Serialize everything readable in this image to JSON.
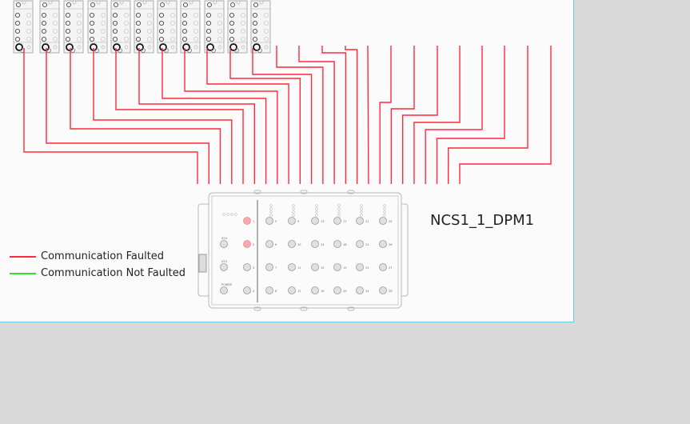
{
  "device": {
    "label": "NCS1_1_DPM1",
    "left_ports": [
      {
        "label": "1",
        "faulted": true
      },
      {
        "label": "2",
        "faulted": true
      },
      {
        "label": "3",
        "faulted": false
      },
      {
        "label": "4",
        "faulted": false
      }
    ],
    "left_aux_labels": [
      "",
      "X24",
      "X23",
      "POWER"
    ],
    "port_columns": [
      [
        "5",
        "6",
        "7",
        "8"
      ],
      [
        "9",
        "10",
        "11",
        "12"
      ],
      [
        "13",
        "14",
        "15",
        "16"
      ],
      [
        "17",
        "18",
        "19",
        "20"
      ],
      [
        "21",
        "22",
        "23",
        "24"
      ],
      [
        "25",
        "26",
        "27",
        "28"
      ]
    ]
  },
  "modules_count_note": "",
  "legend": {
    "faulted": {
      "label": "Communication Faulted",
      "color": "#ff2a3c"
    },
    "not_faulted": {
      "label": "Communication Not Faulted",
      "color": "#33dd33"
    }
  },
  "colors": {
    "link_faulted": "#ff2a3c",
    "port_faulted": "#f7a9ad",
    "device_stroke": "#b8b8b8",
    "canvas_border": "#6cc4f0"
  }
}
